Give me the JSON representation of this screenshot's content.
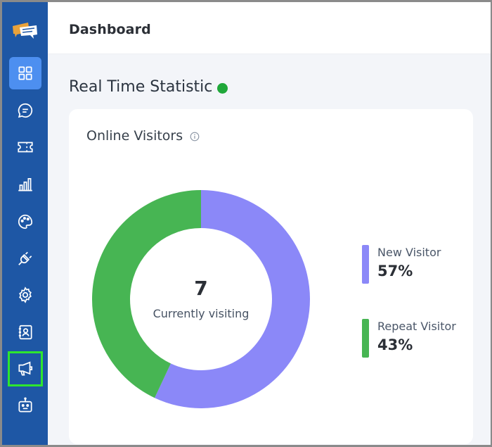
{
  "header": {
    "title": "Dashboard"
  },
  "sidebar": {
    "logo": "chat-bubbles-logo",
    "items": [
      {
        "icon": "grid-icon",
        "active": true
      },
      {
        "icon": "chat-icon"
      },
      {
        "icon": "ticket-icon"
      },
      {
        "icon": "bar-chart-icon"
      },
      {
        "icon": "palette-icon"
      },
      {
        "icon": "plug-icon"
      },
      {
        "icon": "gear-icon"
      },
      {
        "icon": "contacts-icon"
      },
      {
        "icon": "megaphone-icon",
        "highlighted": true
      },
      {
        "icon": "bot-icon"
      }
    ]
  },
  "main": {
    "section_title": "Real Time Statistic",
    "live_status_color": "#20a83a",
    "card": {
      "title": "Online Visitors",
      "info_icon": "info-icon",
      "center_value": "7",
      "center_label": "Currently visiting",
      "legend": [
        {
          "name": "New Visitor",
          "value": "57%",
          "color": "#8b88f8"
        },
        {
          "name": "Repeat Visitor",
          "value": "43%",
          "color": "#47b553"
        }
      ]
    }
  },
  "chart_data": {
    "type": "pie",
    "categories": [
      "New Visitor",
      "Repeat Visitor"
    ],
    "values": [
      57,
      43
    ],
    "colors": [
      "#8b88f8",
      "#47b553"
    ],
    "title": "Online Visitors",
    "donut": true,
    "center_value": "7",
    "center_label": "Currently visiting",
    "legend": "right"
  },
  "colors": {
    "sidebar_bg": "#1e57a5",
    "sidebar_active": "#4d8ff0",
    "highlight_outline": "#2ee62e",
    "page_bg": "#f3f5f9"
  }
}
